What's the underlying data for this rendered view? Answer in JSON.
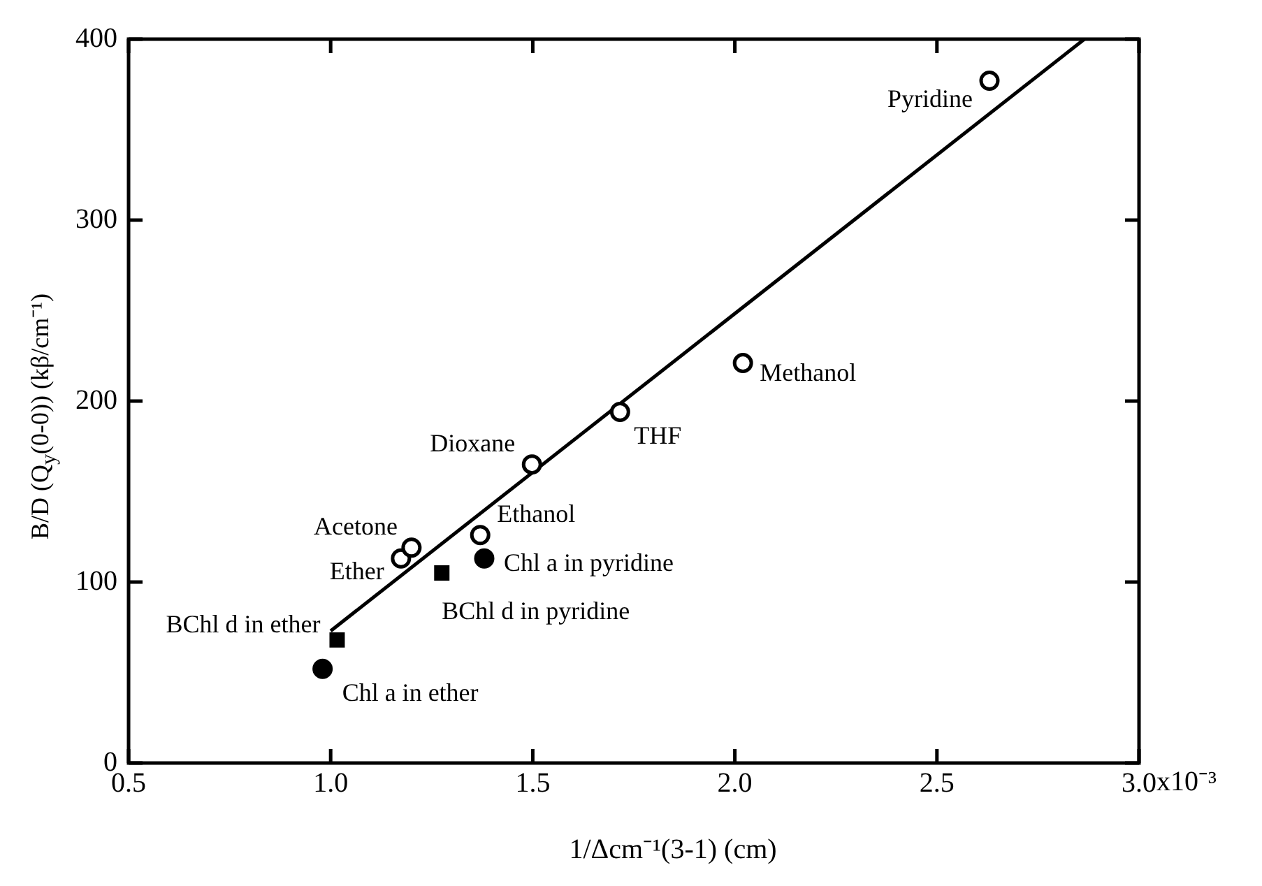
{
  "chart_data": {
    "type": "scatter",
    "xlabel": "1/Δcm⁻¹(3-1)    (cm)",
    "ylabel": "B/D (Q$_{y}$(0-0))  (kβ/cm⁻¹)",
    "xlim": [
      0.5,
      3.0
    ],
    "xticks": [
      {
        "value": 0.5,
        "label": "0.5"
      },
      {
        "value": 1.0,
        "label": "1.0"
      },
      {
        "value": 1.5,
        "label": "1.5"
      },
      {
        "value": 2.0,
        "label": "2.0"
      },
      {
        "value": 2.5,
        "label": "2.5"
      },
      {
        "value": 3.0,
        "label": "3.0"
      }
    ],
    "ylim": [
      0,
      400
    ],
    "yticks": [
      0,
      100,
      200,
      300,
      400
    ],
    "grid": false,
    "legend": false,
    "series": [
      {
        "marker": "circle",
        "color": "#000000",
        "x": [
          1.174,
          1.2,
          1.37,
          1.498,
          1.716,
          2.02,
          2.63
        ],
        "values": [
          113,
          119,
          126,
          165,
          194,
          221,
          377
        ]
      },
      {
        "marker": "circle",
        "color": "#000000",
        "x": [
          0.98,
          1.38
        ],
        "values": [
          52,
          113
        ]
      },
      {
        "marker": "square",
        "color": "#000000",
        "x": [
          1.016,
          1.275
        ],
        "values": [
          68,
          105
        ]
      },
      {
        "type": "line",
        "marker": "none",
        "color": "#000000",
        "x": [
          1.0,
          2.865
        ],
        "values": [
          73,
          400
        ]
      }
    ],
    "annotations": [
      {
        "text": "Ether",
        "x": 1.174,
        "y": 113
      },
      {
        "text": "Acetone",
        "x": 1.2,
        "y": 119
      },
      {
        "text": "Ethanol",
        "x": 1.37,
        "y": 126
      },
      {
        "text": "Dioxane",
        "x": 1.498,
        "y": 165
      },
      {
        "text": "THF",
        "x": 1.716,
        "y": 194
      },
      {
        "text": "Methanol",
        "x": 2.02,
        "y": 221
      },
      {
        "text": "Pyridine",
        "x": 2.63,
        "y": 377
      },
      {
        "text": "Chl a in ether",
        "x": 0.98,
        "y": 52
      },
      {
        "text": "Chl a in pyridine",
        "x": 1.38,
        "y": 113
      },
      {
        "text": "BChl d in ether",
        "x": 1.016,
        "y": 68
      },
      {
        "text": "BChl d in pyridine",
        "x": 1.275,
        "y": 105
      },
      "x10⁻³"
    ]
  }
}
